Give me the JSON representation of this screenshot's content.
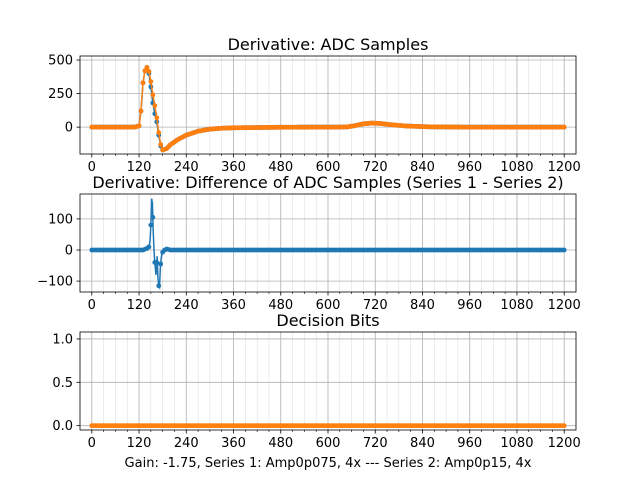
{
  "figure": {
    "xlabel": "Gain: -1.75, Series 1: Amp0p075, 4x --- Series 2: Amp0p15, 4x"
  },
  "colors": {
    "series1": "#1f77b4",
    "series2": "#ff7f0e",
    "grid": "#b0b0b0"
  },
  "chart_data": [
    {
      "type": "line",
      "title": "Derivative: ADC Samples",
      "xlim": [
        -30,
        1230
      ],
      "ylim": [
        -200,
        530
      ],
      "xticks": [
        0,
        120,
        240,
        360,
        480,
        600,
        720,
        840,
        960,
        1080,
        1200
      ],
      "yticks": [
        0,
        250,
        500
      ],
      "grid": true,
      "series": [
        {
          "id": "s1",
          "color": "#1f77b4",
          "points": [
            [
              0,
              0
            ],
            [
              100,
              0
            ],
            [
              110,
              1
            ],
            [
              120,
              10
            ],
            [
              125,
              120
            ],
            [
              130,
              330
            ],
            [
              135,
              420
            ],
            [
              140,
              445
            ],
            [
              145,
              400
            ],
            [
              150,
              300
            ],
            [
              155,
              180
            ],
            [
              160,
              100
            ],
            [
              165,
              40
            ],
            [
              170,
              -60
            ],
            [
              175,
              -140
            ],
            [
              180,
              -170
            ],
            [
              190,
              -160
            ],
            [
              200,
              -130
            ],
            [
              220,
              -90
            ],
            [
              240,
              -60
            ],
            [
              270,
              -30
            ],
            [
              300,
              -15
            ],
            [
              330,
              -8
            ],
            [
              360,
              -5
            ],
            [
              420,
              -3
            ],
            [
              480,
              -1
            ],
            [
              560,
              0
            ],
            [
              620,
              0
            ],
            [
              650,
              2
            ],
            [
              670,
              12
            ],
            [
              690,
              25
            ],
            [
              710,
              30
            ],
            [
              730,
              28
            ],
            [
              760,
              18
            ],
            [
              800,
              8
            ],
            [
              860,
              2
            ],
            [
              960,
              0
            ],
            [
              1200,
              0
            ]
          ]
        },
        {
          "id": "s2",
          "color": "#ff7f0e",
          "points": [
            [
              0,
              0
            ],
            [
              100,
              0
            ],
            [
              110,
              1
            ],
            [
              120,
              10
            ],
            [
              125,
              120
            ],
            [
              130,
              330
            ],
            [
              135,
              420
            ],
            [
              140,
              445
            ],
            [
              145,
              415
            ],
            [
              150,
              340
            ],
            [
              155,
              240
            ],
            [
              160,
              160
            ],
            [
              165,
              70
            ],
            [
              170,
              -40
            ],
            [
              175,
              -130
            ],
            [
              180,
              -170
            ],
            [
              190,
              -160
            ],
            [
              200,
              -130
            ],
            [
              220,
              -90
            ],
            [
              240,
              -60
            ],
            [
              270,
              -30
            ],
            [
              300,
              -15
            ],
            [
              330,
              -8
            ],
            [
              360,
              -5
            ],
            [
              420,
              -3
            ],
            [
              480,
              -1
            ],
            [
              560,
              0
            ],
            [
              620,
              0
            ],
            [
              650,
              2
            ],
            [
              670,
              12
            ],
            [
              690,
              25
            ],
            [
              710,
              30
            ],
            [
              730,
              28
            ],
            [
              760,
              18
            ],
            [
              800,
              8
            ],
            [
              860,
              2
            ],
            [
              960,
              0
            ],
            [
              1200,
              0
            ]
          ]
        }
      ]
    },
    {
      "type": "line",
      "title": "Derivative: Difference of ADC Samples (Series 1 - Series 2)",
      "xlim": [
        -30,
        1230
      ],
      "ylim": [
        -135,
        180
      ],
      "xticks": [
        0,
        120,
        240,
        360,
        480,
        600,
        720,
        840,
        960,
        1080,
        1200
      ],
      "yticks": [
        -100,
        0,
        100
      ],
      "grid": true,
      "series": [
        {
          "id": "diff",
          "color": "#1f77b4",
          "points": [
            [
              0,
              0
            ],
            [
              130,
              0
            ],
            [
              140,
              5
            ],
            [
              145,
              10
            ],
            [
              148,
              30
            ],
            [
              150,
              80
            ],
            [
              152,
              165
            ],
            [
              154,
              150
            ],
            [
              156,
              60
            ],
            [
              158,
              0
            ],
            [
              160,
              -40
            ],
            [
              163,
              -80
            ],
            [
              166,
              -20
            ],
            [
              168,
              -90
            ],
            [
              170,
              -115
            ],
            [
              172,
              -120
            ],
            [
              174,
              -60
            ],
            [
              176,
              -30
            ],
            [
              178,
              -10
            ],
            [
              185,
              0
            ],
            [
              190,
              3
            ],
            [
              200,
              0
            ],
            [
              1200,
              0
            ]
          ]
        }
      ]
    },
    {
      "type": "line",
      "title": "Decision Bits",
      "xlim": [
        -30,
        1230
      ],
      "ylim": [
        -0.05,
        1.08
      ],
      "xticks": [
        0,
        120,
        240,
        360,
        480,
        600,
        720,
        840,
        960,
        1080,
        1200
      ],
      "yticks": [
        0.0,
        0.5,
        1.0
      ],
      "grid": true,
      "series": [
        {
          "id": "bits",
          "color": "#ff7f0e",
          "points": [
            [
              0,
              0
            ],
            [
              1200,
              0
            ]
          ]
        }
      ]
    }
  ]
}
